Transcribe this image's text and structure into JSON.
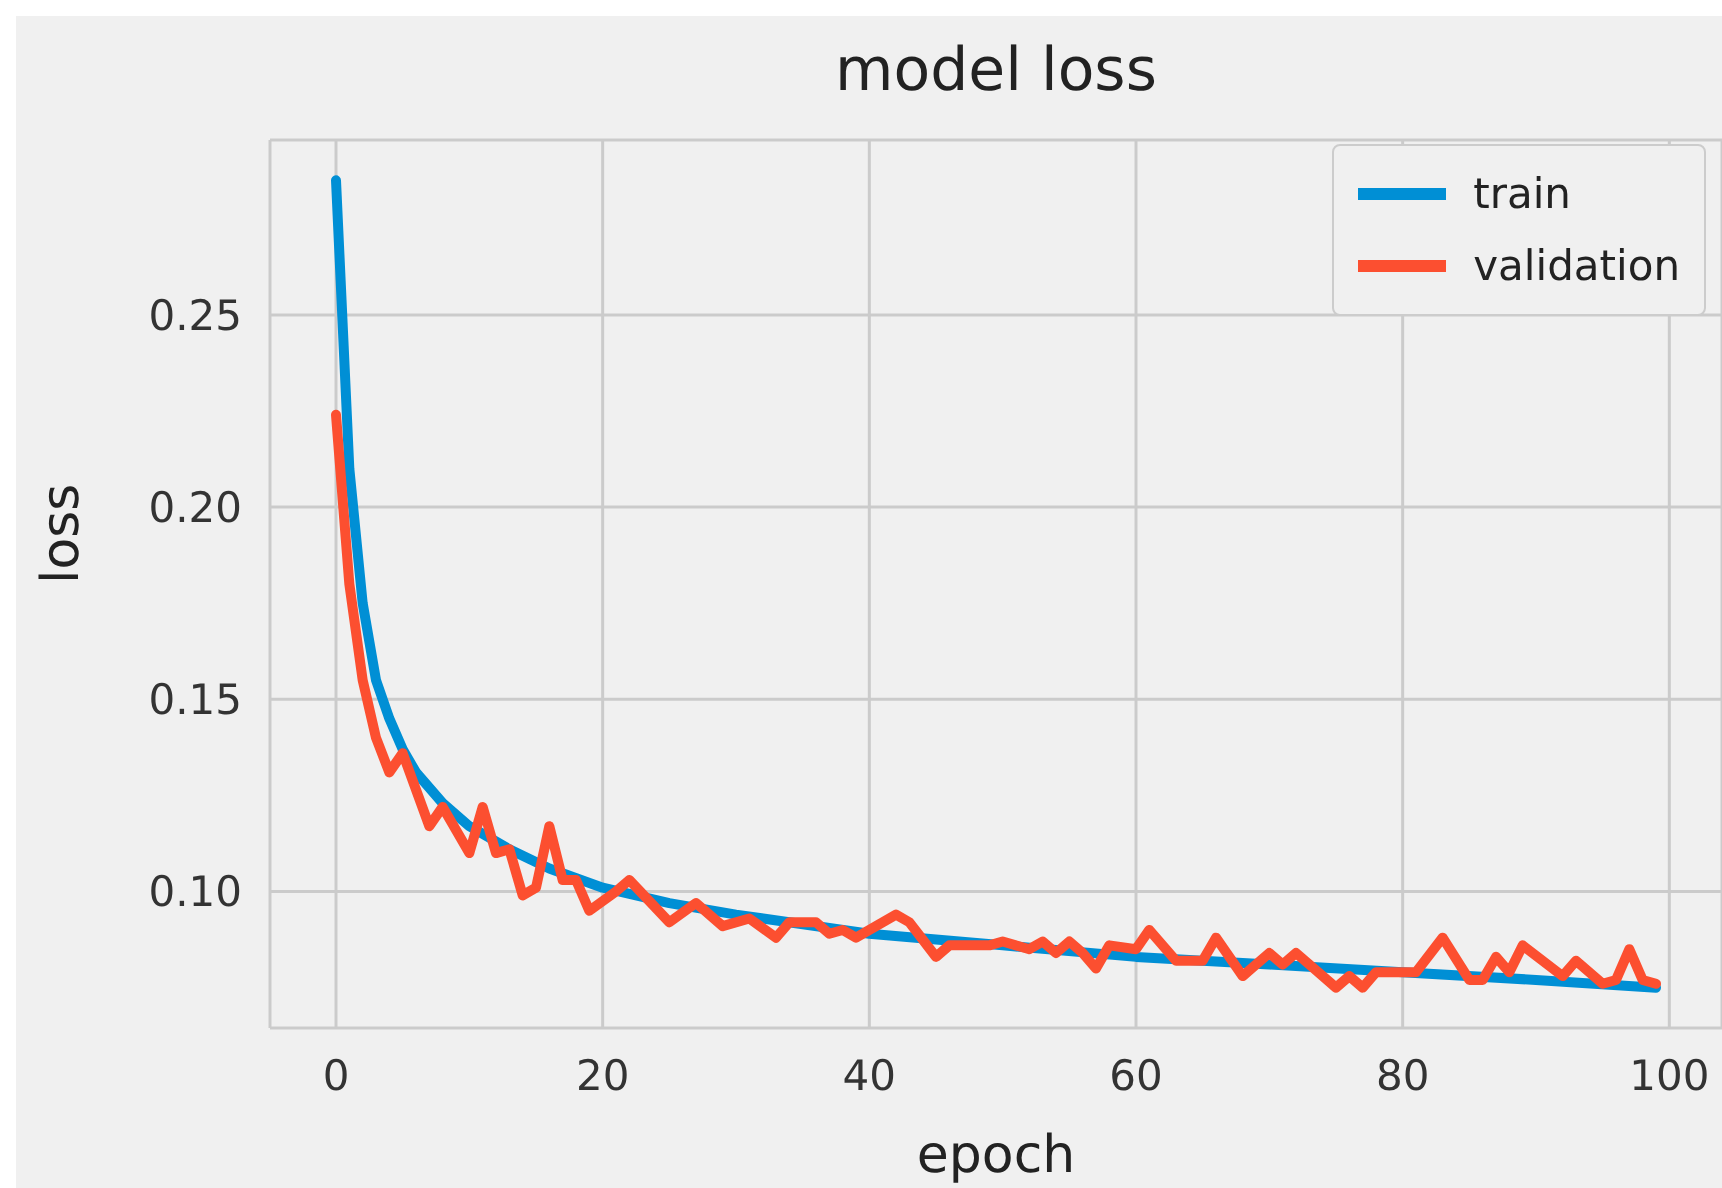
{
  "chart_data": {
    "type": "line",
    "title": "model loss",
    "xlabel": "epoch",
    "ylabel": "loss",
    "xlim": [
      -4.95,
      103.95
    ],
    "xticks": [
      0,
      20,
      40,
      60,
      80,
      100
    ],
    "ylim": [
      0.0645,
      0.2955
    ],
    "yticks": [
      {
        "value": 0.1,
        "label": "0.10"
      },
      {
        "value": 0.15,
        "label": "0.15"
      },
      {
        "value": 0.2,
        "label": "0.20"
      },
      {
        "value": 0.25,
        "label": "0.25"
      }
    ],
    "grid": true,
    "legend": "top right",
    "marker": "none",
    "line_style": "solid",
    "series": [
      {
        "name": "train",
        "color": "#008fd5",
        "x": [
          0,
          1,
          2,
          3,
          4,
          5,
          6,
          8,
          10,
          13,
          16,
          20,
          25,
          30,
          40,
          50,
          60,
          70,
          80,
          90,
          99
        ],
        "values": [
          0.285,
          0.21,
          0.175,
          0.155,
          0.145,
          0.137,
          0.131,
          0.123,
          0.117,
          0.111,
          0.106,
          0.101,
          0.097,
          0.094,
          0.089,
          0.086,
          0.083,
          0.081,
          0.079,
          0.077,
          0.075
        ]
      },
      {
        "name": "validation",
        "color": "#fc4f30",
        "x": [
          0,
          1,
          2,
          3,
          4,
          5,
          7,
          8,
          10,
          11,
          12,
          13,
          14,
          15,
          16,
          17,
          18,
          19,
          21,
          22,
          25,
          27,
          29,
          31,
          33,
          34,
          36,
          37,
          38,
          39,
          42,
          43,
          45,
          46,
          49,
          50,
          52,
          53,
          54,
          55,
          56,
          57,
          58,
          60,
          61,
          63,
          65,
          66,
          68,
          70,
          71,
          72,
          73,
          75,
          76,
          77,
          78,
          81,
          83,
          85,
          86,
          87,
          88,
          89,
          92,
          93,
          95,
          96,
          97,
          98,
          99
        ],
        "values": [
          0.224,
          0.18,
          0.155,
          0.14,
          0.131,
          0.136,
          0.117,
          0.122,
          0.11,
          0.122,
          0.11,
          0.111,
          0.099,
          0.101,
          0.117,
          0.103,
          0.103,
          0.095,
          0.1,
          0.103,
          0.092,
          0.097,
          0.091,
          0.093,
          0.088,
          0.092,
          0.092,
          0.089,
          0.09,
          0.088,
          0.094,
          0.092,
          0.083,
          0.086,
          0.086,
          0.087,
          0.085,
          0.087,
          0.084,
          0.087,
          0.084,
          0.08,
          0.086,
          0.085,
          0.09,
          0.082,
          0.082,
          0.088,
          0.078,
          0.084,
          0.081,
          0.084,
          0.081,
          0.075,
          0.078,
          0.075,
          0.079,
          0.079,
          0.088,
          0.077,
          0.077,
          0.083,
          0.079,
          0.086,
          0.078,
          0.082,
          0.076,
          0.077,
          0.085,
          0.077,
          0.076
        ]
      }
    ]
  }
}
